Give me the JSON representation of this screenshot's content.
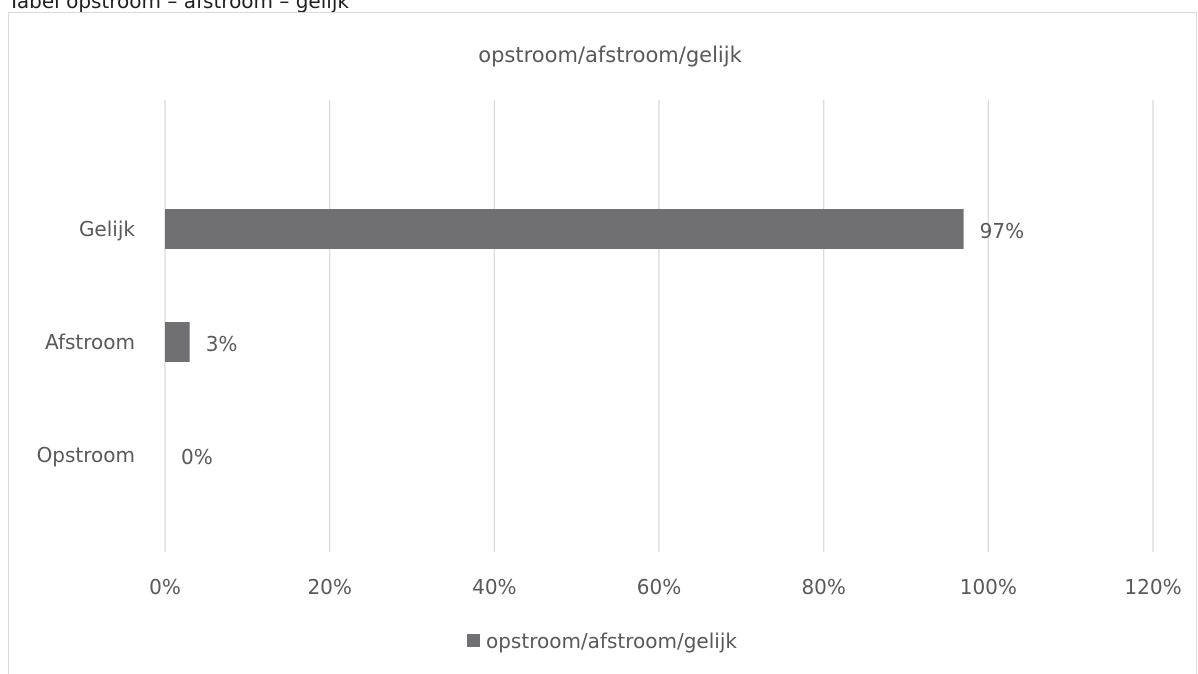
{
  "caption": "Tabel opstroom – afstroom – gelijk",
  "chart_data": {
    "type": "bar",
    "orientation": "horizontal",
    "title": "opstroom/afstroom/gelijk",
    "categories": [
      "Gelijk",
      "Afstroom",
      "Opstroom"
    ],
    "series": [
      {
        "name": "opstroom/afstroom/gelijk",
        "values": [
          0.97,
          0.03,
          0.0
        ],
        "color": "#707073"
      }
    ],
    "data_labels": [
      "97%",
      "3%",
      "0%"
    ],
    "xlim": [
      0,
      1.2
    ],
    "x_ticks": [
      "0%",
      "20%",
      "40%",
      "60%",
      "80%",
      "100%",
      "120%"
    ],
    "grid": "vertical",
    "legend_position": "bottom"
  }
}
